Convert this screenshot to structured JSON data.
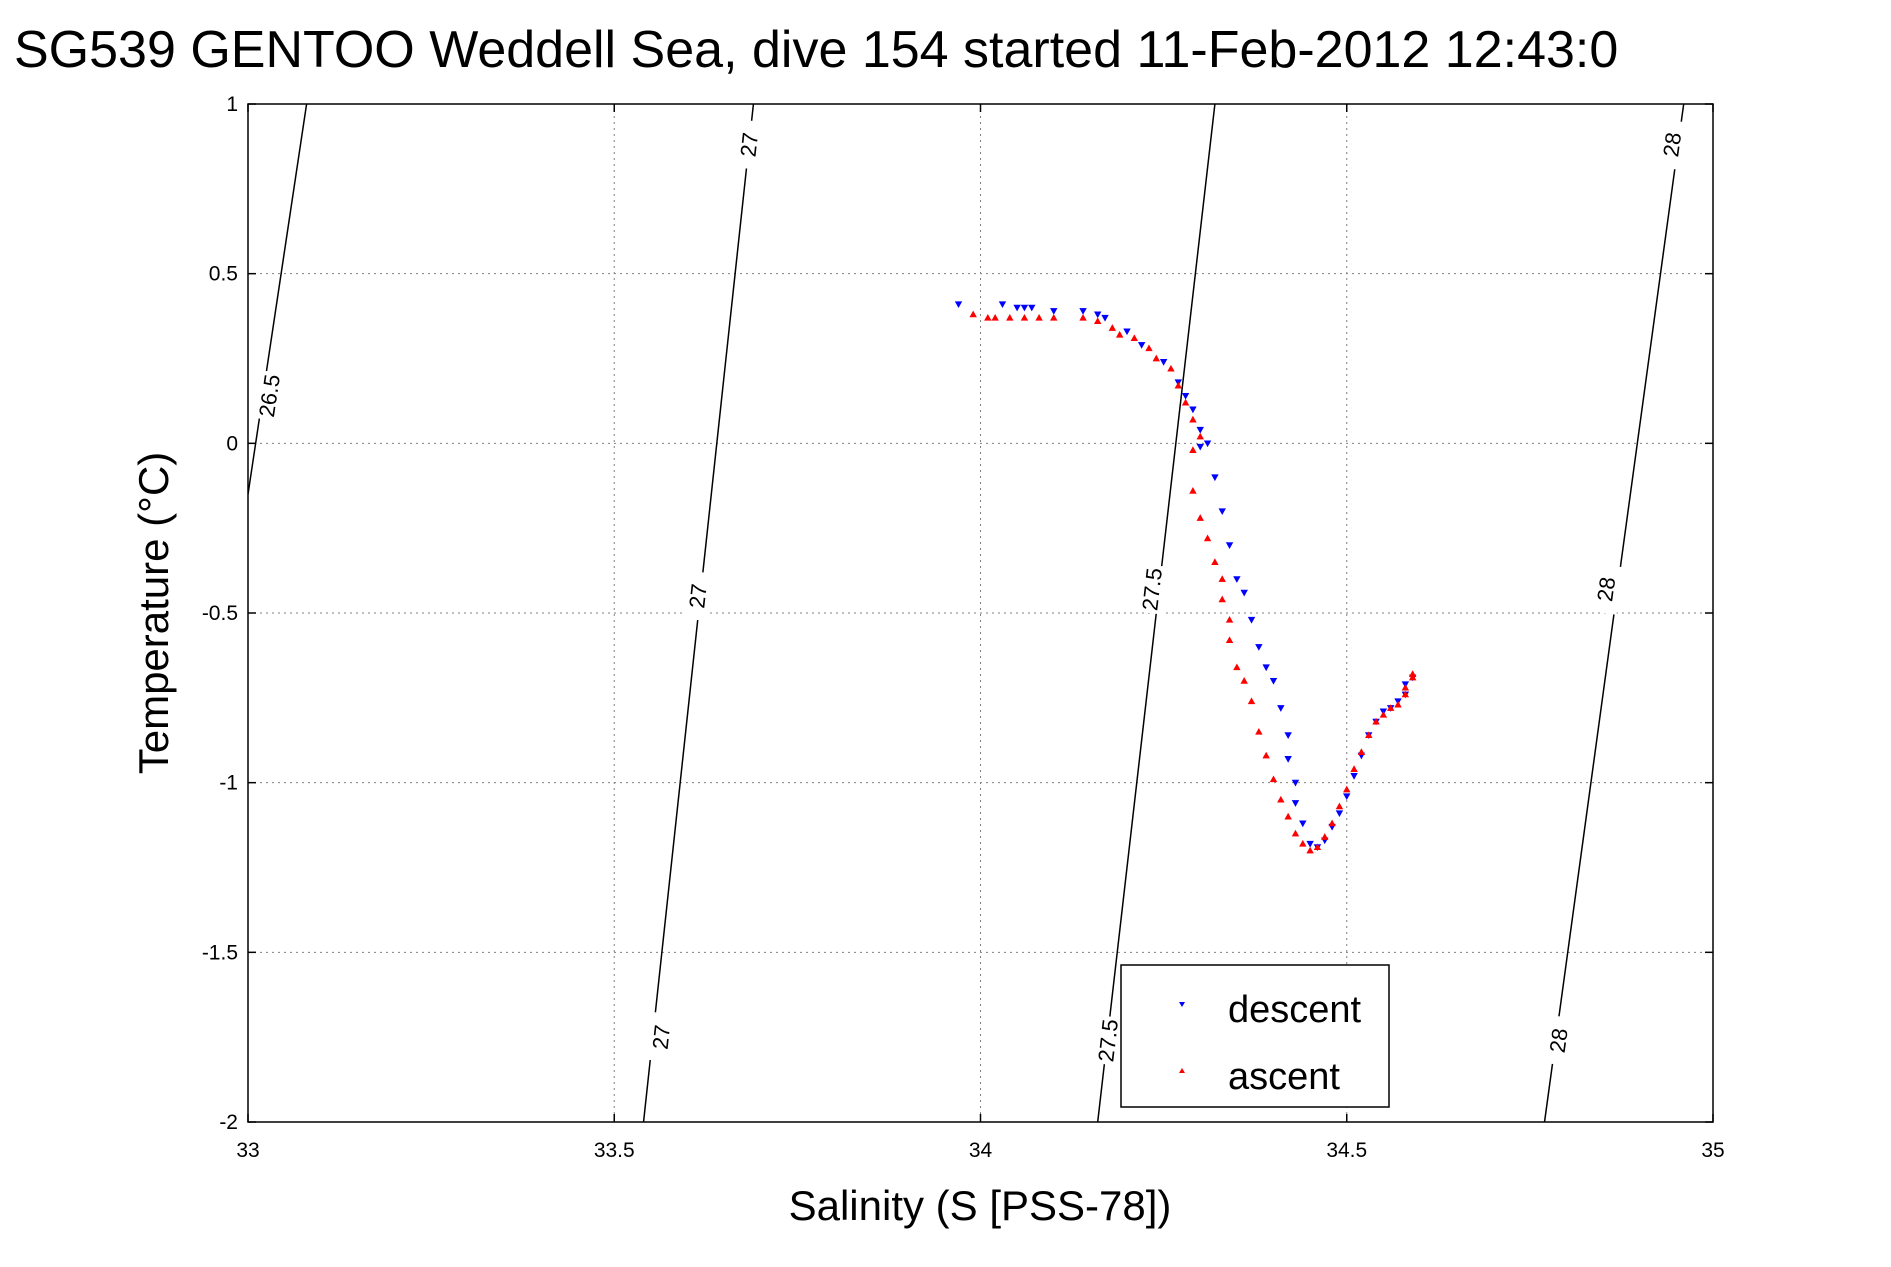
{
  "chart_data": {
    "type": "scatter",
    "title": "SG539 GENTOO Weddell Sea, dive 154 started 11-Feb-2012 12:43:0",
    "xlabel": "Salinity (S [PSS-78])",
    "ylabel": "Temperature (°C)",
    "xlim": [
      33,
      35
    ],
    "ylim": [
      -2,
      1
    ],
    "xticks": [
      33,
      33.5,
      34,
      34.5,
      35
    ],
    "yticks": [
      -2,
      -1.5,
      -1,
      -0.5,
      0,
      0.5,
      1
    ],
    "xtick_labels": [
      "33",
      "33.5",
      "34",
      "34.5",
      "35"
    ],
    "ytick_labels": [
      "-2",
      "-1.5",
      "-1",
      "-0.5",
      "0",
      "0.5",
      "1"
    ],
    "grid": true,
    "legend": {
      "position": "bottom-center",
      "entries": [
        "descent",
        "ascent"
      ]
    },
    "colors": {
      "descent": "#0000ff",
      "ascent": "#ff0000",
      "axes": "#000000",
      "grid": "#808080"
    },
    "contours": [
      {
        "label": "26.5",
        "line": [
          [
            33.0,
            -0.15
          ],
          [
            33.08,
            1.0
          ]
        ],
        "label_positions": [
          [
            33.03,
            0.14
          ]
        ]
      },
      {
        "label": "27",
        "line": [
          [
            33.54,
            -2.0
          ],
          [
            33.69,
            1.0
          ]
        ],
        "label_positions": [
          [
            33.565,
            -1.75
          ],
          [
            33.615,
            -0.45
          ],
          [
            33.685,
            0.88
          ]
        ]
      },
      {
        "label": "27.5",
        "line": [
          [
            34.16,
            -2.0
          ],
          [
            34.32,
            1.0
          ]
        ],
        "label_positions": [
          [
            34.175,
            -1.76
          ],
          [
            34.235,
            -0.43
          ]
        ]
      },
      {
        "label": "28",
        "line": [
          [
            34.77,
            -2.0
          ],
          [
            34.96,
            1.0
          ]
        ],
        "label_positions": [
          [
            34.79,
            -1.76
          ],
          [
            34.855,
            -0.43
          ],
          [
            34.945,
            0.88
          ]
        ]
      }
    ],
    "series": [
      {
        "name": "descent",
        "marker": "triangle-down",
        "points": [
          [
            33.97,
            0.41
          ],
          [
            34.03,
            0.41
          ],
          [
            34.05,
            0.4
          ],
          [
            34.06,
            0.4
          ],
          [
            34.07,
            0.4
          ],
          [
            34.1,
            0.39
          ],
          [
            34.14,
            0.39
          ],
          [
            34.16,
            0.38
          ],
          [
            34.17,
            0.37
          ],
          [
            34.2,
            0.33
          ],
          [
            34.22,
            0.29
          ],
          [
            34.25,
            0.24
          ],
          [
            34.27,
            0.18
          ],
          [
            34.28,
            0.14
          ],
          [
            34.29,
            0.1
          ],
          [
            34.3,
            0.04
          ],
          [
            34.31,
            0.0
          ],
          [
            34.3,
            -0.01
          ],
          [
            34.32,
            -0.1
          ],
          [
            34.33,
            -0.2
          ],
          [
            34.34,
            -0.3
          ],
          [
            34.35,
            -0.4
          ],
          [
            34.36,
            -0.44
          ],
          [
            34.37,
            -0.52
          ],
          [
            34.38,
            -0.6
          ],
          [
            34.39,
            -0.66
          ],
          [
            34.4,
            -0.7
          ],
          [
            34.41,
            -0.78
          ],
          [
            34.42,
            -0.86
          ],
          [
            34.42,
            -0.93
          ],
          [
            34.43,
            -1.0
          ],
          [
            34.43,
            -1.06
          ],
          [
            34.44,
            -1.12
          ],
          [
            34.45,
            -1.18
          ],
          [
            34.46,
            -1.19
          ],
          [
            34.47,
            -1.17
          ],
          [
            34.48,
            -1.13
          ],
          [
            34.49,
            -1.09
          ],
          [
            34.5,
            -1.04
          ],
          [
            34.51,
            -0.98
          ],
          [
            34.52,
            -0.92
          ],
          [
            34.53,
            -0.86
          ],
          [
            34.54,
            -0.82
          ],
          [
            34.55,
            -0.79
          ],
          [
            34.56,
            -0.78
          ],
          [
            34.57,
            -0.76
          ],
          [
            34.58,
            -0.74
          ],
          [
            34.58,
            -0.71
          ],
          [
            34.59,
            -0.69
          ]
        ]
      },
      {
        "name": "ascent",
        "marker": "triangle-up",
        "points": [
          [
            33.99,
            0.38
          ],
          [
            34.01,
            0.37
          ],
          [
            34.02,
            0.37
          ],
          [
            34.04,
            0.37
          ],
          [
            34.06,
            0.37
          ],
          [
            34.08,
            0.37
          ],
          [
            34.1,
            0.37
          ],
          [
            34.14,
            0.37
          ],
          [
            34.16,
            0.36
          ],
          [
            34.18,
            0.34
          ],
          [
            34.19,
            0.32
          ],
          [
            34.21,
            0.31
          ],
          [
            34.23,
            0.28
          ],
          [
            34.24,
            0.25
          ],
          [
            34.26,
            0.22
          ],
          [
            34.27,
            0.17
          ],
          [
            34.28,
            0.12
          ],
          [
            34.29,
            0.07
          ],
          [
            34.3,
            0.02
          ],
          [
            34.29,
            -0.02
          ],
          [
            34.29,
            -0.14
          ],
          [
            34.3,
            -0.22
          ],
          [
            34.31,
            -0.28
          ],
          [
            34.32,
            -0.35
          ],
          [
            34.33,
            -0.4
          ],
          [
            34.33,
            -0.46
          ],
          [
            34.34,
            -0.52
          ],
          [
            34.34,
            -0.58
          ],
          [
            34.35,
            -0.66
          ],
          [
            34.36,
            -0.7
          ],
          [
            34.37,
            -0.76
          ],
          [
            34.38,
            -0.85
          ],
          [
            34.39,
            -0.92
          ],
          [
            34.4,
            -0.99
          ],
          [
            34.41,
            -1.05
          ],
          [
            34.42,
            -1.1
          ],
          [
            34.43,
            -1.15
          ],
          [
            34.44,
            -1.18
          ],
          [
            34.45,
            -1.2
          ],
          [
            34.46,
            -1.19
          ],
          [
            34.47,
            -1.16
          ],
          [
            34.48,
            -1.12
          ],
          [
            34.49,
            -1.07
          ],
          [
            34.5,
            -1.02
          ],
          [
            34.51,
            -0.96
          ],
          [
            34.52,
            -0.91
          ],
          [
            34.53,
            -0.86
          ],
          [
            34.54,
            -0.82
          ],
          [
            34.55,
            -0.8
          ],
          [
            34.56,
            -0.78
          ],
          [
            34.57,
            -0.77
          ],
          [
            34.58,
            -0.74
          ],
          [
            34.58,
            -0.72
          ],
          [
            34.59,
            -0.69
          ],
          [
            34.59,
            -0.68
          ]
        ]
      }
    ]
  }
}
